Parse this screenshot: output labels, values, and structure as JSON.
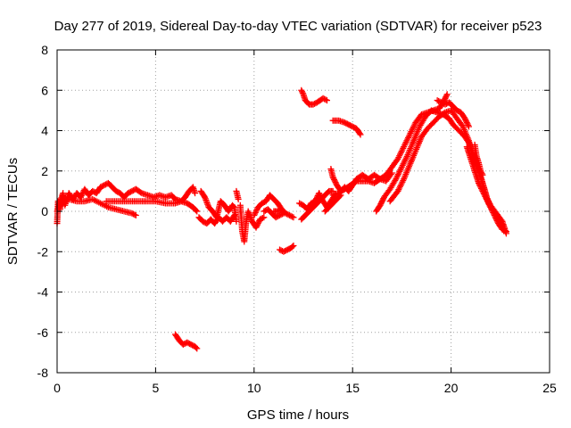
{
  "chart_data": {
    "type": "scatter",
    "title": "Day 277 of 2019, Sidereal Day-to-day VTEC variation (SDTVAR) for receiver p523",
    "xlabel": "GPS time / hours",
    "ylabel": "SDTVAR / TECUs",
    "xlim": [
      0,
      25
    ],
    "ylim": [
      -8,
      8
    ],
    "xticks": [
      "0",
      "5",
      "10",
      "15",
      "20",
      "25"
    ],
    "yticks": [
      "-8",
      "-6",
      "-4",
      "-2",
      "0",
      "2",
      "4",
      "6",
      "8"
    ],
    "grid": true,
    "legend": "none",
    "marker": "plus",
    "series": [
      {
        "name": "SDTVAR p523",
        "color": "#ff0000",
        "segments": [
          [
            [
              0.0,
              -0.6
            ],
            [
              0.05,
              0.5
            ],
            [
              0.15,
              0.1
            ],
            [
              0.3,
              0.8
            ],
            [
              0.4,
              0.3
            ],
            [
              0.6,
              0.9
            ],
            [
              0.8,
              0.6
            ],
            [
              1.0,
              0.9
            ],
            [
              1.2,
              0.7
            ],
            [
              1.4,
              1.1
            ],
            [
              1.6,
              0.8
            ],
            [
              1.8,
              1.0
            ],
            [
              2.0,
              0.9
            ],
            [
              2.2,
              1.2
            ],
            [
              2.4,
              1.3
            ],
            [
              2.6,
              1.4
            ],
            [
              2.8,
              1.2
            ],
            [
              3.0,
              1.0
            ],
            [
              3.2,
              0.9
            ],
            [
              3.4,
              0.7
            ],
            [
              3.6,
              0.9
            ],
            [
              3.8,
              1.0
            ],
            [
              4.0,
              1.1
            ],
            [
              4.3,
              0.9
            ],
            [
              4.6,
              0.8
            ],
            [
              4.9,
              0.7
            ],
            [
              5.2,
              0.8
            ],
            [
              5.5,
              0.7
            ],
            [
              5.8,
              0.8
            ],
            [
              6.0,
              0.6
            ],
            [
              6.3,
              0.5
            ],
            [
              6.5,
              0.7
            ],
            [
              6.7,
              1.0
            ],
            [
              6.9,
              1.2
            ],
            [
              7.0,
              0.9
            ]
          ],
          [
            [
              0.1,
              0.2
            ],
            [
              0.3,
              0.5
            ],
            [
              0.6,
              0.6
            ],
            [
              1.0,
              0.5
            ],
            [
              1.4,
              0.5
            ],
            [
              1.8,
              0.6
            ],
            [
              2.2,
              0.4
            ],
            [
              2.6,
              0.2
            ],
            [
              3.0,
              0.1
            ],
            [
              3.4,
              0.0
            ],
            [
              3.8,
              -0.1
            ],
            [
              4.0,
              -0.2
            ]
          ],
          [
            [
              2.5,
              0.5
            ],
            [
              3.0,
              0.5
            ],
            [
              3.5,
              0.5
            ],
            [
              4.0,
              0.5
            ],
            [
              4.5,
              0.5
            ],
            [
              5.0,
              0.5
            ],
            [
              5.5,
              0.4
            ],
            [
              6.0,
              0.4
            ],
            [
              6.3,
              0.5
            ],
            [
              6.6,
              0.4
            ],
            [
              6.9,
              0.2
            ],
            [
              7.1,
              0.0
            ]
          ],
          [
            [
              0.0,
              0.0
            ],
            [
              0.1,
              0.3
            ],
            [
              0.2,
              0.6
            ],
            [
              0.3,
              0.9
            ]
          ],
          [
            [
              7.3,
              1.0
            ],
            [
              7.5,
              0.7
            ],
            [
              7.7,
              0.2
            ],
            [
              7.9,
              0.0
            ],
            [
              8.1,
              -0.3
            ],
            [
              8.3,
              0.5
            ],
            [
              8.5,
              0.3
            ],
            [
              8.7,
              0.0
            ],
            [
              8.9,
              0.3
            ],
            [
              9.0,
              0.2
            ],
            [
              9.1,
              -0.5
            ]
          ],
          [
            [
              7.2,
              -0.3
            ],
            [
              7.4,
              -0.5
            ],
            [
              7.6,
              -0.6
            ],
            [
              7.8,
              -0.4
            ],
            [
              8.0,
              -0.6
            ],
            [
              8.2,
              -0.3
            ],
            [
              8.4,
              -0.5
            ],
            [
              8.6,
              -0.3
            ],
            [
              8.8,
              -0.5
            ],
            [
              9.0,
              -0.2
            ]
          ],
          [
            [
              9.3,
              0.3
            ],
            [
              9.4,
              -1.0
            ],
            [
              9.5,
              -1.5
            ],
            [
              9.6,
              -0.5
            ],
            [
              9.7,
              0.0
            ],
            [
              9.9,
              -0.5
            ],
            [
              10.1,
              -0.8
            ],
            [
              10.3,
              -0.4
            ],
            [
              10.5,
              -0.3
            ]
          ],
          [
            [
              10.0,
              -0.2
            ],
            [
              10.2,
              0.2
            ],
            [
              10.4,
              0.4
            ],
            [
              10.6,
              0.5
            ],
            [
              10.8,
              0.8
            ],
            [
              11.0,
              0.6
            ],
            [
              11.2,
              0.4
            ],
            [
              11.4,
              0.1
            ],
            [
              11.6,
              -0.1
            ],
            [
              11.8,
              -0.2
            ],
            [
              12.0,
              -0.3
            ]
          ],
          [
            [
              10.5,
              0.0
            ],
            [
              10.7,
              0.1
            ],
            [
              10.9,
              -0.1
            ],
            [
              11.1,
              -0.3
            ],
            [
              11.3,
              -0.2
            ],
            [
              11.5,
              -0.1
            ]
          ],
          [
            [
              9.1,
              1.0
            ],
            [
              9.2,
              0.6
            ]
          ],
          [
            [
              11.0,
              0.0
            ],
            [
              11.2,
              0.0
            ],
            [
              11.4,
              0.1
            ]
          ],
          [
            [
              11.3,
              -1.9
            ],
            [
              11.5,
              -2.0
            ],
            [
              11.7,
              -1.9
            ],
            [
              11.9,
              -1.8
            ],
            [
              12.0,
              -1.7
            ]
          ],
          [
            [
              12.3,
              0.4
            ],
            [
              12.5,
              0.3
            ],
            [
              12.7,
              0.1
            ],
            [
              12.9,
              0.4
            ],
            [
              13.1,
              0.5
            ],
            [
              13.3,
              0.9
            ],
            [
              13.5,
              0.5
            ],
            [
              13.7,
              0.2
            ],
            [
              13.9,
              0.5
            ],
            [
              14.1,
              0.8
            ]
          ],
          [
            [
              12.4,
              -0.4
            ],
            [
              12.6,
              -0.2
            ],
            [
              12.8,
              0.0
            ],
            [
              13.0,
              0.2
            ],
            [
              13.2,
              0.4
            ],
            [
              13.4,
              0.6
            ],
            [
              13.6,
              0.8
            ],
            [
              13.8,
              1.0
            ],
            [
              14.0,
              1.0
            ]
          ],
          [
            [
              13.9,
              2.1
            ],
            [
              14.0,
              1.7
            ],
            [
              14.2,
              1.3
            ],
            [
              14.4,
              1.0
            ],
            [
              14.6,
              1.2
            ],
            [
              14.8,
              1.0
            ],
            [
              15.0,
              1.3
            ],
            [
              15.2,
              1.6
            ],
            [
              15.5,
              1.8
            ],
            [
              15.8,
              1.6
            ],
            [
              16.1,
              1.8
            ],
            [
              16.4,
              1.6
            ],
            [
              16.7,
              1.5
            ],
            [
              17.0,
              1.9
            ]
          ],
          [
            [
              14.0,
              0.8
            ],
            [
              14.3,
              0.9
            ],
            [
              14.6,
              1.1
            ],
            [
              14.9,
              1.3
            ],
            [
              15.2,
              1.5
            ],
            [
              15.5,
              1.5
            ],
            [
              15.8,
              1.5
            ],
            [
              16.1,
              1.4
            ],
            [
              16.4,
              1.6
            ],
            [
              16.7,
              1.8
            ],
            [
              17.0,
              2.2
            ],
            [
              17.3,
              2.6
            ],
            [
              17.6,
              3.2
            ],
            [
              17.9,
              3.8
            ],
            [
              18.2,
              4.4
            ],
            [
              18.5,
              4.8
            ],
            [
              18.8,
              4.9
            ],
            [
              19.1,
              5.0
            ],
            [
              19.4,
              5.1
            ],
            [
              19.6,
              5.4
            ],
            [
              19.8,
              5.8
            ]
          ],
          [
            [
              13.6,
              0.0
            ],
            [
              13.8,
              0.2
            ],
            [
              14.0,
              0.4
            ],
            [
              14.2,
              0.6
            ],
            [
              14.4,
              0.8
            ]
          ],
          [
            [
              12.4,
              6.0
            ],
            [
              12.5,
              5.8
            ],
            [
              12.6,
              5.5
            ],
            [
              12.8,
              5.3
            ],
            [
              13.0,
              5.3
            ],
            [
              13.2,
              5.4
            ],
            [
              13.5,
              5.6
            ],
            [
              13.7,
              5.5
            ]
          ],
          [
            [
              14.0,
              4.5
            ],
            [
              14.3,
              4.5
            ],
            [
              14.6,
              4.4
            ],
            [
              14.8,
              4.3
            ],
            [
              15.0,
              4.2
            ],
            [
              15.2,
              4.1
            ],
            [
              15.4,
              3.8
            ]
          ],
          [
            [
              16.2,
              0.0
            ],
            [
              16.4,
              0.3
            ],
            [
              16.6,
              0.7
            ],
            [
              16.9,
              1.1
            ],
            [
              17.2,
              1.6
            ],
            [
              17.5,
              2.2
            ],
            [
              17.8,
              2.8
            ],
            [
              18.1,
              3.5
            ],
            [
              18.4,
              4.2
            ],
            [
              18.7,
              4.7
            ],
            [
              19.0,
              5.0
            ],
            [
              19.3,
              4.9
            ],
            [
              19.6,
              4.8
            ],
            [
              19.9,
              4.6
            ],
            [
              20.1,
              4.3
            ],
            [
              20.4,
              4.0
            ],
            [
              20.7,
              3.7
            ],
            [
              20.9,
              3.4
            ],
            [
              21.1,
              2.9
            ],
            [
              21.3,
              2.3
            ],
            [
              21.5,
              1.7
            ],
            [
              21.7,
              1.1
            ],
            [
              21.9,
              0.4
            ],
            [
              22.1,
              0.1
            ],
            [
              22.4,
              -0.3
            ],
            [
              22.7,
              -0.8
            ]
          ],
          [
            [
              16.9,
              0.5
            ],
            [
              17.3,
              1.0
            ],
            [
              17.6,
              1.6
            ],
            [
              17.9,
              2.3
            ],
            [
              18.2,
              3.0
            ],
            [
              18.5,
              3.7
            ],
            [
              18.8,
              4.1
            ],
            [
              19.1,
              4.4
            ],
            [
              19.4,
              4.7
            ],
            [
              19.7,
              4.9
            ],
            [
              20.0,
              5.0
            ],
            [
              20.3,
              4.6
            ],
            [
              20.6,
              4.2
            ],
            [
              20.9,
              3.5
            ],
            [
              21.1,
              2.8
            ],
            [
              21.4,
              2.1
            ],
            [
              21.6,
              1.4
            ],
            [
              21.8,
              0.7
            ],
            [
              22.0,
              0.3
            ],
            [
              22.3,
              -0.1
            ],
            [
              22.6,
              -0.5
            ],
            [
              22.8,
              -1.1
            ]
          ],
          [
            [
              19.3,
              5.5
            ],
            [
              19.5,
              5.4
            ],
            [
              19.7,
              5.3
            ],
            [
              19.9,
              5.4
            ],
            [
              20.1,
              5.2
            ],
            [
              20.3,
              5.0
            ],
            [
              20.5,
              4.9
            ],
            [
              20.7,
              4.6
            ],
            [
              20.9,
              4.2
            ]
          ],
          [
            [
              20.8,
              3.2
            ],
            [
              21.0,
              2.6
            ],
            [
              21.2,
              2.0
            ],
            [
              21.4,
              1.4
            ],
            [
              21.6,
              1.0
            ],
            [
              21.8,
              0.6
            ],
            [
              22.0,
              0.2
            ],
            [
              22.2,
              -0.2
            ],
            [
              22.4,
              -0.6
            ],
            [
              22.6,
              -0.9
            ],
            [
              22.8,
              -1.0
            ]
          ],
          [
            [
              21.2,
              3.3
            ],
            [
              21.3,
              2.7
            ],
            [
              21.4,
              2.4
            ],
            [
              21.5,
              2.0
            ],
            [
              21.6,
              1.8
            ]
          ],
          [
            [
              6.0,
              -6.1
            ],
            [
              6.2,
              -6.4
            ],
            [
              6.4,
              -6.6
            ],
            [
              6.6,
              -6.5
            ],
            [
              6.8,
              -6.6
            ],
            [
              7.0,
              -6.7
            ],
            [
              7.1,
              -6.8
            ]
          ]
        ]
      }
    ]
  }
}
